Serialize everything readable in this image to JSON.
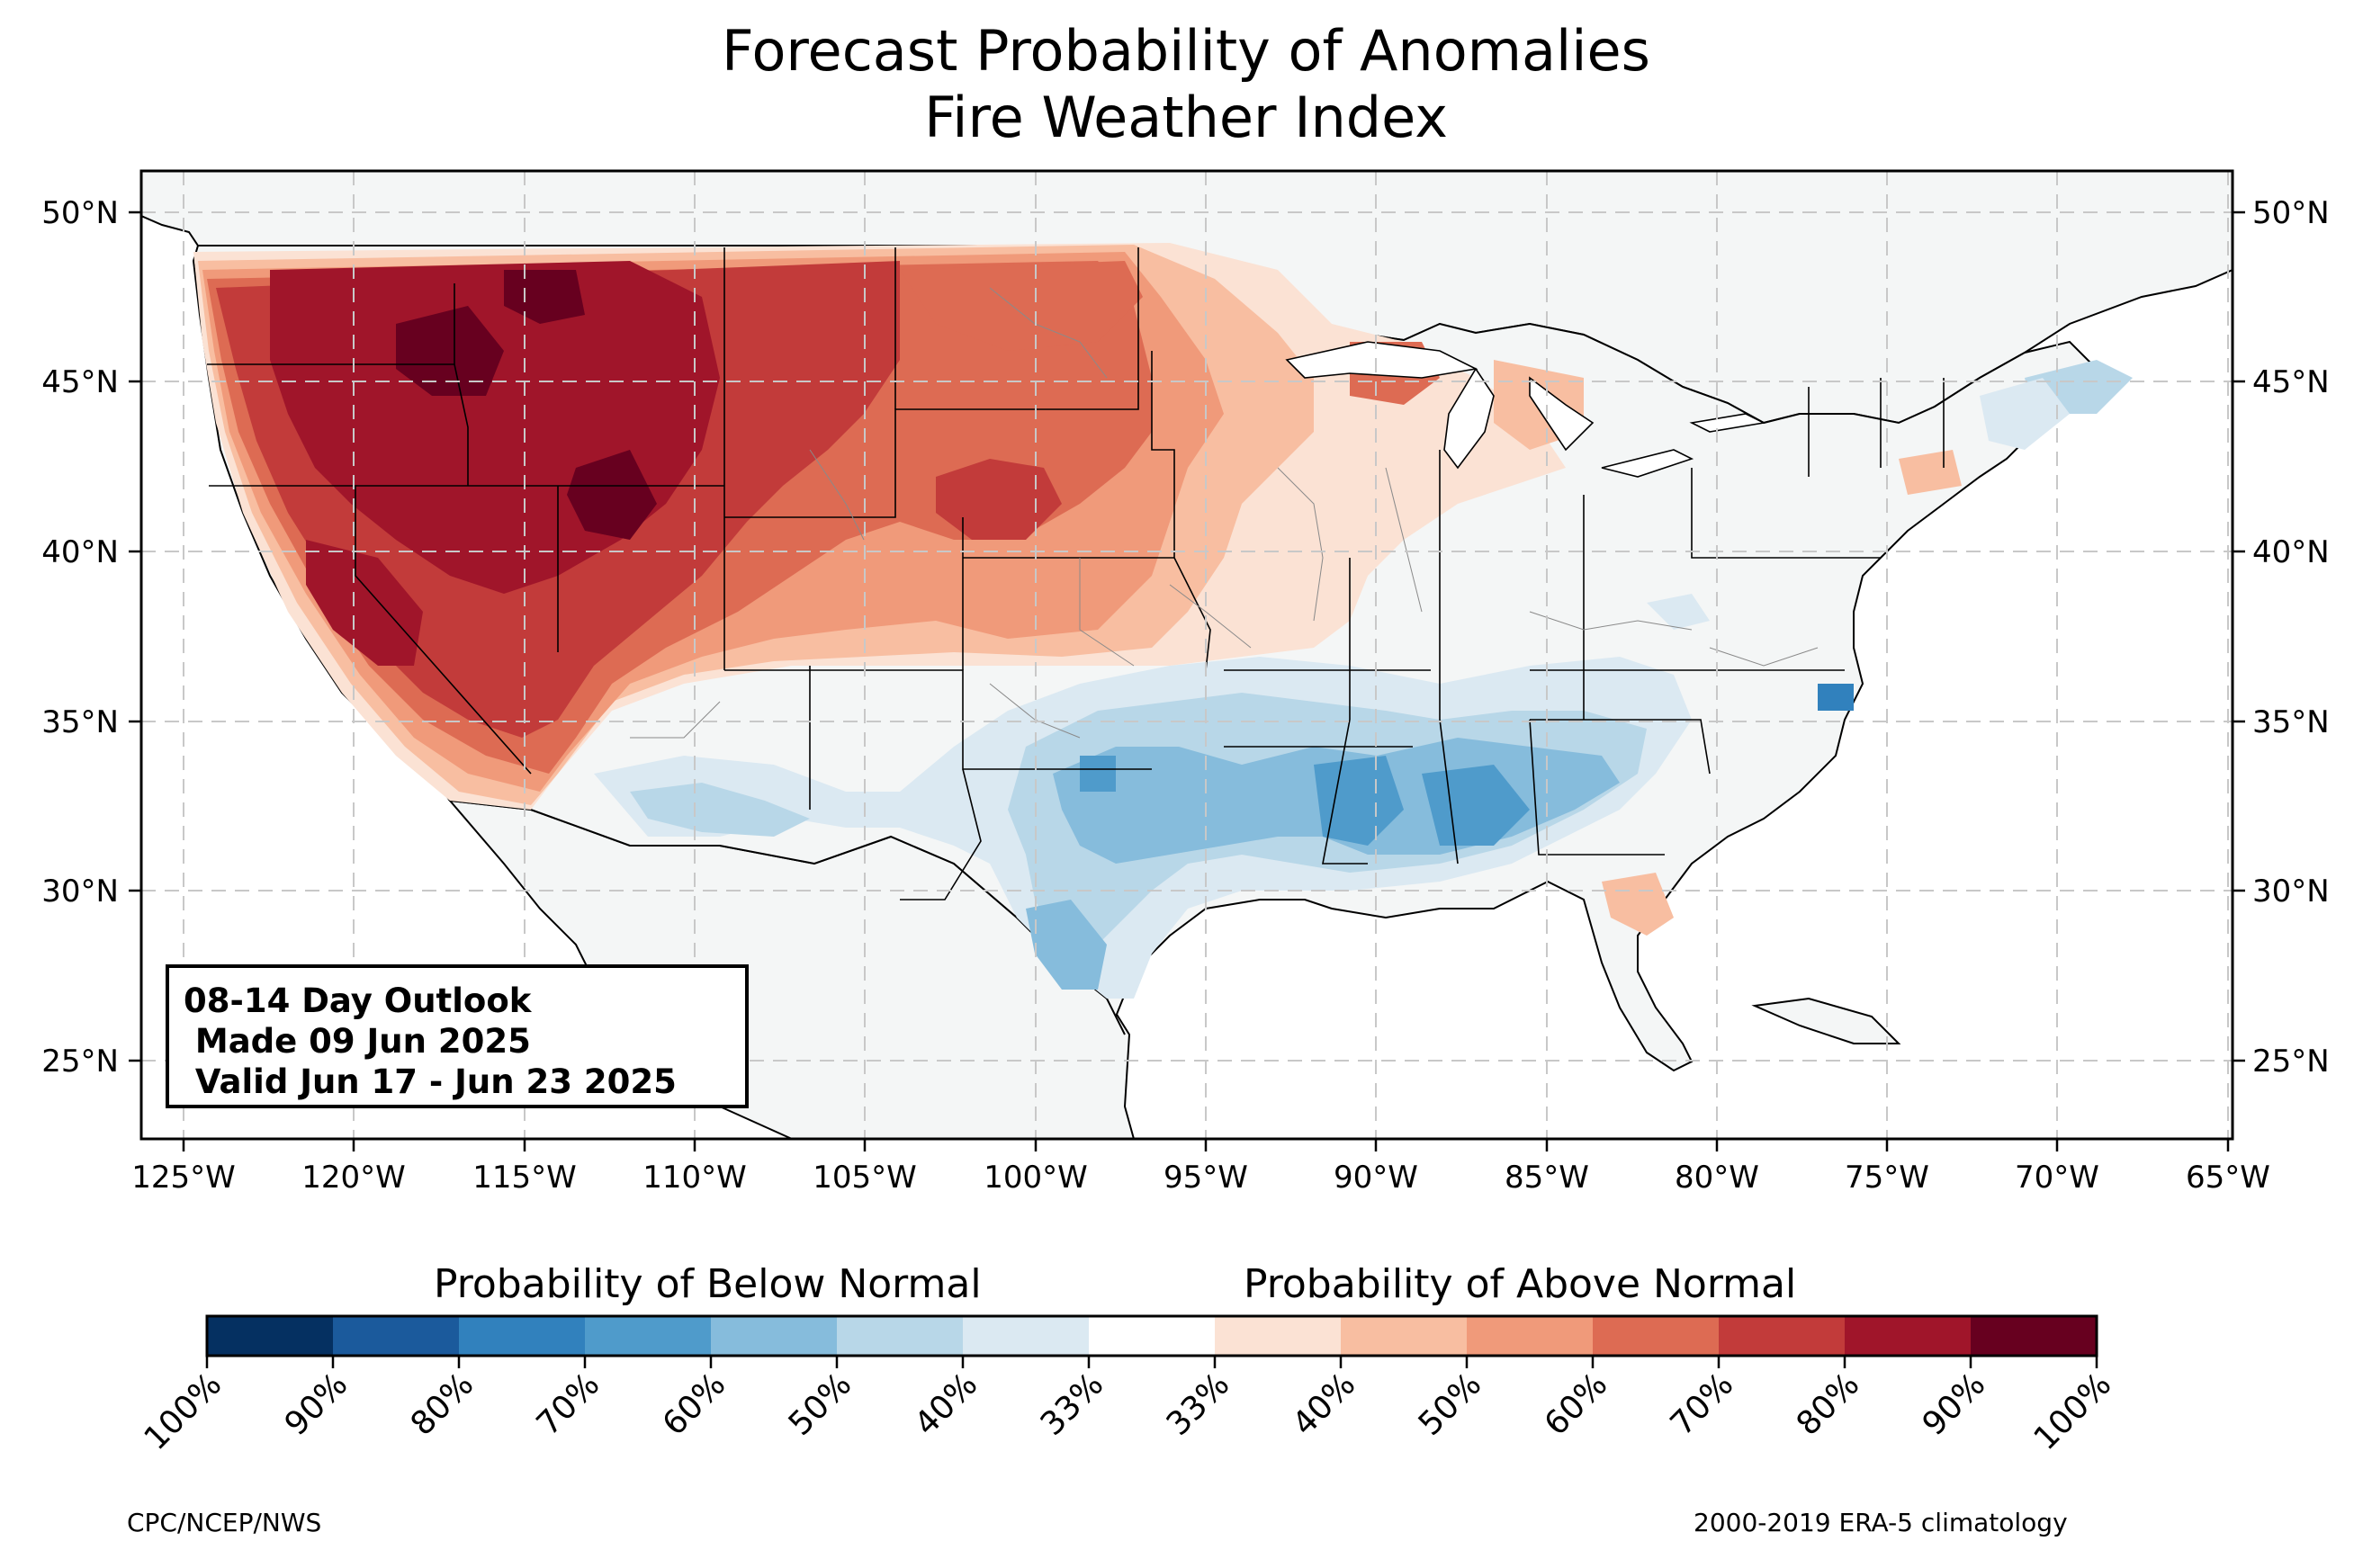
{
  "title": {
    "line1": "Forecast Probability of Anomalies",
    "line2": "Fire Weather Index"
  },
  "outlook": {
    "line1": "08-14 Day Outlook",
    "line2": " Made 09 Jun 2025",
    "line3": " Valid Jun 17 - Jun 23 2025"
  },
  "axes": {
    "lon_labels": [
      "125°W",
      "120°W",
      "115°W",
      "110°W",
      "105°W",
      "100°W",
      "95°W",
      "90°W",
      "85°W",
      "80°W",
      "75°W",
      "70°W",
      "65°W"
    ],
    "lat_labels": [
      "50°N",
      "45°N",
      "40°N",
      "35°N",
      "30°N",
      "25°N"
    ],
    "lon_range": [
      -126.3,
      -64.9
    ],
    "lat_range": [
      22.8,
      51.3
    ],
    "gridlines": true
  },
  "colorbar": {
    "below_label": "Probability of Below Normal",
    "above_label": "Probability of Above Normal",
    "tick_labels": [
      "100%",
      "90%",
      "80%",
      "70%",
      "60%",
      "50%",
      "40%",
      "33%",
      "33%",
      "40%",
      "50%",
      "60%",
      "70%",
      "80%",
      "90%",
      "100%"
    ],
    "colors": [
      "#053061",
      "#1b5a9c",
      "#3181bd",
      "#4f9bcb",
      "#86bcdc",
      "#b8d7e8",
      "#dbe9f2",
      "#ffffff",
      "#fbe2d4",
      "#f8bea1",
      "#f09a7a",
      "#dd6b53",
      "#c23b3a",
      "#a0152a",
      "#67001f"
    ]
  },
  "credits": {
    "left": "CPC/NCEP/NWS",
    "right": "2000-2019 ERA-5 climatology"
  },
  "colors": {
    "land": "#f4f6f6",
    "ocean": "#ffffff",
    "grid": "#c8c8c8"
  }
}
